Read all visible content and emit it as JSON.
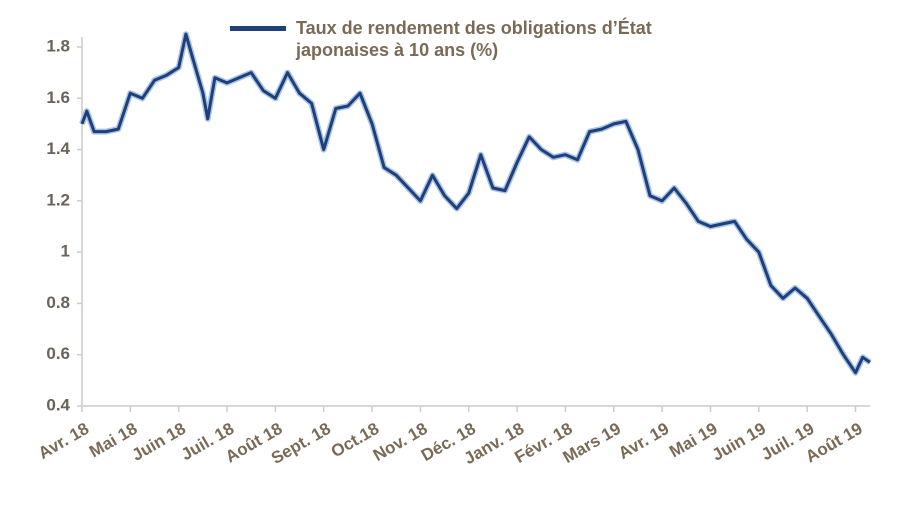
{
  "chart_data": {
    "type": "line",
    "series": [
      {
        "name": "Taux de rendement des obligations d’État japonaises à 10 ans (%)",
        "color": "#1f3f7a",
        "x": [
          0,
          0.1,
          0.25,
          0.5,
          0.75,
          1.0,
          1.25,
          1.5,
          1.75,
          2.0,
          2.15,
          2.3,
          2.5,
          2.6,
          2.75,
          3.0,
          3.25,
          3.5,
          3.75,
          4.0,
          4.25,
          4.5,
          4.75,
          5.0,
          5.25,
          5.5,
          5.75,
          6.0,
          6.25,
          6.5,
          6.75,
          7.0,
          7.25,
          7.5,
          7.75,
          8.0,
          8.25,
          8.5,
          8.75,
          9.0,
          9.25,
          9.5,
          9.75,
          10.0,
          10.25,
          10.5,
          10.75,
          11.0,
          11.25,
          11.5,
          11.75,
          12.0,
          12.25,
          12.5,
          12.75,
          13.0,
          13.25,
          13.5,
          13.75,
          14.0,
          14.25,
          14.5,
          14.75,
          15.0,
          15.25,
          15.5,
          15.75,
          16.0,
          16.15,
          16.3
        ],
        "values": [
          1.5,
          1.55,
          1.47,
          1.47,
          1.48,
          1.62,
          1.6,
          1.67,
          1.69,
          1.72,
          1.85,
          1.75,
          1.62,
          1.52,
          1.68,
          1.66,
          1.68,
          1.7,
          1.63,
          1.6,
          1.7,
          1.62,
          1.58,
          1.4,
          1.56,
          1.57,
          1.62,
          1.5,
          1.33,
          1.3,
          1.25,
          1.2,
          1.3,
          1.22,
          1.17,
          1.23,
          1.38,
          1.25,
          1.24,
          1.35,
          1.45,
          1.4,
          1.37,
          1.38,
          1.36,
          1.47,
          1.48,
          1.5,
          1.51,
          1.4,
          1.22,
          1.2,
          1.25,
          1.19,
          1.12,
          1.1,
          1.11,
          1.12,
          1.05,
          1.0,
          0.87,
          0.82,
          0.86,
          0.82,
          0.75,
          0.68,
          0.6,
          0.53,
          0.59,
          0.57
        ]
      }
    ],
    "xlim": [
      0,
      16.3
    ],
    "xticks": [
      {
        "value": 0,
        "label": "Avr. 18"
      },
      {
        "value": 1,
        "label": "Mai 18"
      },
      {
        "value": 2,
        "label": "Juin 18"
      },
      {
        "value": 3,
        "label": "Juil. 18"
      },
      {
        "value": 4,
        "label": "Août 18"
      },
      {
        "value": 5,
        "label": "Sept. 18"
      },
      {
        "value": 6,
        "label": "Oct.18"
      },
      {
        "value": 7,
        "label": "Nov. 18"
      },
      {
        "value": 8,
        "label": "Déc. 18"
      },
      {
        "value": 9,
        "label": "Janv. 18"
      },
      {
        "value": 10,
        "label": "Févr. 18"
      },
      {
        "value": 11,
        "label": "Mars 19"
      },
      {
        "value": 12,
        "label": "Avr. 19"
      },
      {
        "value": 13,
        "label": "Mai 19"
      },
      {
        "value": 14,
        "label": "Juin 19"
      },
      {
        "value": 15,
        "label": "Juil. 19"
      },
      {
        "value": 16,
        "label": "Août 19"
      }
    ],
    "ylim": [
      0.4,
      1.8
    ],
    "yticks": [
      0.4,
      0.6,
      0.8,
      1.0,
      1.2,
      1.4,
      1.6,
      1.8
    ],
    "legend": "top"
  }
}
